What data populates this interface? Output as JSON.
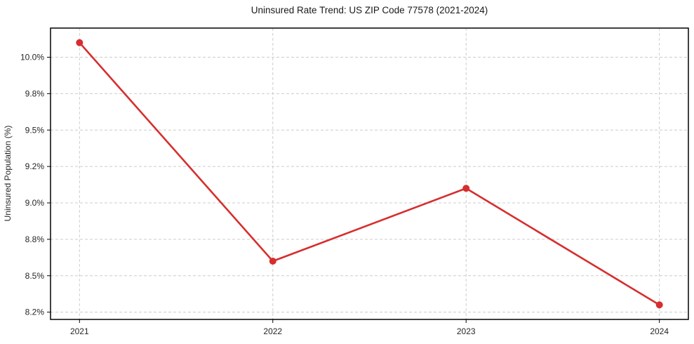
{
  "chart_data": {
    "type": "line",
    "title": "Uninsured Rate Trend: US ZIP Code 77578 (2021-2024)",
    "xlabel": "",
    "ylabel": "Uninsured Population (%)",
    "x": [
      2021,
      2022,
      2023,
      2024
    ],
    "x_tick_labels": [
      "2021",
      "2022",
      "2023",
      "2024"
    ],
    "values": [
      10.1,
      8.6,
      9.1,
      8.3
    ],
    "y_tick_values": [
      8.25,
      8.5,
      8.75,
      9.0,
      9.25,
      9.5,
      9.75,
      10.0
    ],
    "y_tick_labels": [
      "8.2%",
      "8.5%",
      "8.8%",
      "9.0%",
      "9.2%",
      "9.5%",
      "9.8%",
      "10.0%"
    ],
    "xlim": [
      2020.85,
      2024.15
    ],
    "ylim": [
      8.2,
      10.2
    ],
    "grid": true,
    "grid_style": "dashed",
    "legend": false,
    "colors": {
      "line": "#d62e2e",
      "marker": "#d62e2e",
      "grid": "#cccccc",
      "axis": "#000000",
      "text": "#262626",
      "background": "#ffffff"
    }
  }
}
